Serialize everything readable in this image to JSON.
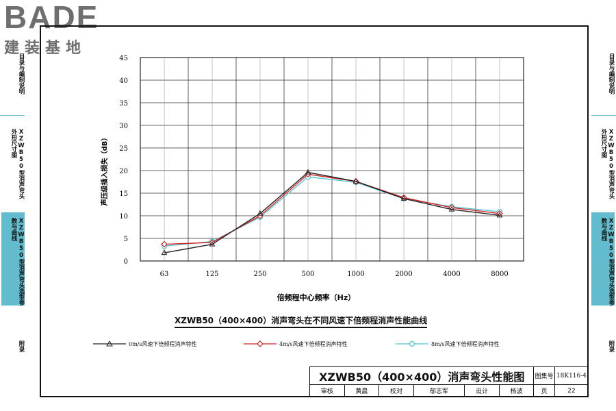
{
  "logo": {
    "brand": "BADE",
    "subtitle": "建装基地"
  },
  "sidebar_left": [
    {
      "label": "目录与编制说明",
      "active": false
    },
    {
      "label": "XZWB50型消声弯头外形尺寸图",
      "active": false
    },
    {
      "label": "XZWB50型消声弯头选型参数与曲线",
      "active": true
    },
    {
      "label": "附录",
      "active": false
    }
  ],
  "sidebar_right": [
    {
      "label": "目录与编制说明",
      "active": false
    },
    {
      "label": "XZWB50型消声弯头外形尺寸图",
      "active": false
    },
    {
      "label": "XZWB50型消声弯头选型参数与曲线",
      "active": true
    },
    {
      "label": "附录",
      "active": false
    }
  ],
  "chart_data": {
    "type": "line",
    "title": "XZWB50（400×400）消声弯头在不同风速下倍频程消声性能曲线",
    "xlabel": "倍频程中心频率（Hz）",
    "ylabel": "声压级插入损失（dB）",
    "categories": [
      "63",
      "125",
      "250",
      "500",
      "1000",
      "2000",
      "4000",
      "8000"
    ],
    "ylim": [
      0,
      45
    ],
    "yticks": [
      0,
      5,
      10,
      15,
      20,
      25,
      30,
      35,
      40,
      45
    ],
    "grid": true,
    "legend_position": "bottom",
    "series": [
      {
        "name": "0m/s风速下倍频程消声特性",
        "values": [
          1.8,
          3.7,
          10.5,
          19.6,
          17.6,
          13.8,
          11.4,
          10.1
        ],
        "color": "#222222",
        "marker": "triangle"
      },
      {
        "name": "4m/s风速下倍频程消声特性",
        "values": [
          3.7,
          4.1,
          10.0,
          19.2,
          17.6,
          14.0,
          11.8,
          10.5
        ],
        "color": "#d42020",
        "marker": "diamond"
      },
      {
        "name": "8m/s风速下倍频程消声特性",
        "values": [
          3.3,
          4.3,
          9.7,
          18.6,
          17.4,
          13.8,
          12.0,
          10.9
        ],
        "color": "#4fc6d2",
        "marker": "circle"
      }
    ]
  },
  "titleblock": {
    "main_title": "XZWB50（400×400）消声弯头性能图",
    "atlas_label": "图集号",
    "atlas_number": "18K116-4",
    "review_label": "审核",
    "reviewer": "黄晨",
    "proof_label": "校对",
    "proofreader": "郁志军",
    "design_label": "设计",
    "designer": "杨波",
    "page_label": "页",
    "page_number": "22"
  }
}
